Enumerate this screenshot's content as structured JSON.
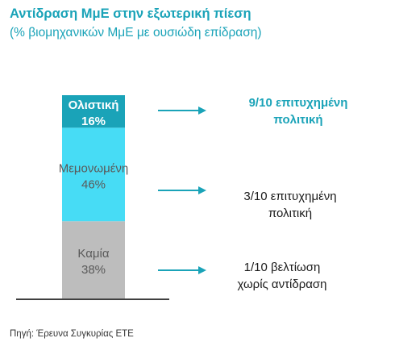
{
  "header": {
    "title": "Αντίδραση ΜμΕ στην εξωτερική πίεση",
    "subtitle": "(% βιομηχανικών ΜμΕ με ουσιώδη επίδραση)"
  },
  "chart_data": {
    "type": "bar",
    "stacked": true,
    "title": "Αντίδραση ΜμΕ στην εξωτερική πίεση",
    "subtitle": "(% βιομηχανικών ΜμΕ με ουσιώδη επίδραση)",
    "unit": "%",
    "ylim": [
      0,
      100
    ],
    "grid": false,
    "series": [
      {
        "name": "Καμία",
        "value": 38,
        "label": "38%",
        "color": "#bdbdbd",
        "text_color": "#5a5a5a",
        "bold": false
      },
      {
        "name": "Μεμονωμένη",
        "value": 46,
        "label": "46%",
        "color": "#47dcf5",
        "text_color": "#5a5a5a",
        "bold": false
      },
      {
        "name": "Ολιστική",
        "value": 16,
        "label": "16%",
        "color": "#1aa3b8",
        "text_color": "#ffffff",
        "bold": true
      }
    ]
  },
  "outcomes": [
    {
      "segment": "Ολιστική",
      "line1": "9/10 επιτυχημένη",
      "line2": "πολιτική",
      "highlight": true
    },
    {
      "segment": "Μεμονωμένη",
      "line1": "3/10 επιτυχημένη",
      "line2": "πολιτική",
      "highlight": false
    },
    {
      "segment": "Καμία",
      "line1": "1/10 βελτίωση",
      "line2": "χωρίς αντίδραση",
      "highlight": false
    }
  ],
  "colors": {
    "accent": "#1aa3b8",
    "arrow": "#1aa3b8",
    "axis": "#000000"
  },
  "source": "Πηγή: Έρευνα Συγκυρίας ΕΤΕ"
}
